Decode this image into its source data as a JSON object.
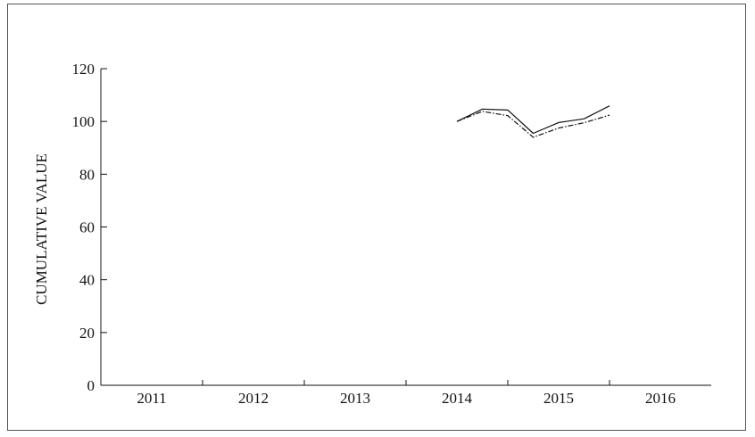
{
  "chart_data": {
    "type": "line",
    "title": "",
    "xlabel": "",
    "ylabel": "CUMULATIVE VALUE",
    "x_categories": [
      "2011",
      "2012",
      "2013",
      "2014",
      "2015",
      "2016"
    ],
    "xlim": [
      2011,
      2017
    ],
    "ylim": [
      0,
      120
    ],
    "yticks": [
      0,
      20,
      40,
      60,
      80,
      100,
      120
    ],
    "grid": false,
    "legend": "none",
    "series": [
      {
        "style": "solid",
        "color": "#111111",
        "x": [
          2014.5,
          2014.75,
          2015.0,
          2015.25,
          2015.5,
          2015.75,
          2016.0
        ],
        "y": [
          100.0,
          104.7,
          104.3,
          95.5,
          99.6,
          101.0,
          105.9
        ]
      },
      {
        "style": "dash-dot",
        "color": "#111111",
        "x": [
          2014.5,
          2014.75,
          2015.0,
          2015.25,
          2015.5,
          2015.75,
          2016.0
        ],
        "y": [
          100.0,
          103.8,
          102.2,
          94.0,
          97.5,
          99.5,
          102.4
        ]
      }
    ]
  }
}
